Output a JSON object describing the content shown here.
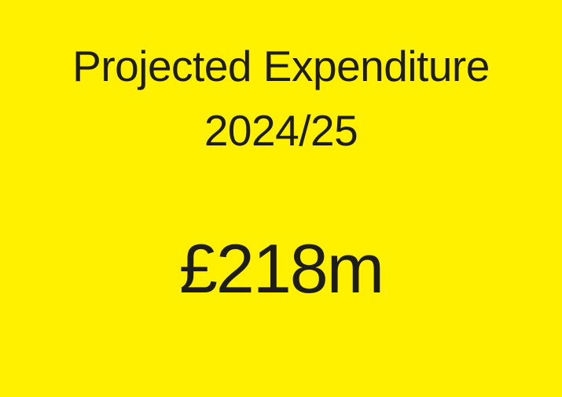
{
  "colors": {
    "background": "#FFF100",
    "text": "#1D1D1B"
  },
  "tile": {
    "title_line1": "Projected Expenditure",
    "title_line2": "2024/25",
    "value": "£218m"
  },
  "chart_data": {
    "type": "table",
    "title": "Projected Expenditure 2024/25",
    "categories": [
      "Projected Expenditure 2024/25"
    ],
    "values": [
      "£218m"
    ],
    "value_gbp_millions": 218,
    "notes": "single KPI tile, black text centered on yellow background"
  }
}
